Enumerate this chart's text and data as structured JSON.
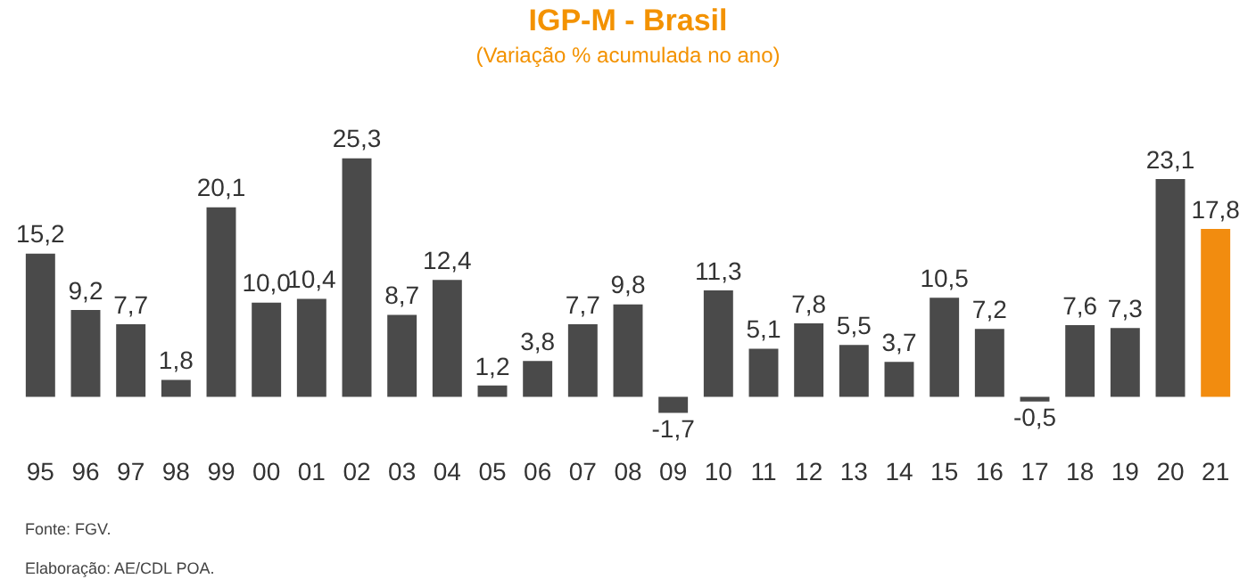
{
  "chart_data": {
    "type": "bar",
    "title": "IGP-M - Brasil",
    "subtitle": "(Variação % acumulada no ano)",
    "categories": [
      "95",
      "96",
      "97",
      "98",
      "99",
      "00",
      "01",
      "02",
      "03",
      "04",
      "05",
      "06",
      "07",
      "08",
      "09",
      "10",
      "11",
      "12",
      "13",
      "14",
      "15",
      "16",
      "17",
      "18",
      "19",
      "20",
      "21"
    ],
    "values": [
      15.2,
      9.2,
      7.7,
      1.8,
      20.1,
      10.0,
      10.4,
      25.3,
      8.7,
      12.4,
      1.2,
      3.8,
      7.7,
      9.8,
      -1.7,
      11.3,
      5.1,
      7.8,
      5.5,
      3.7,
      10.5,
      7.2,
      -0.5,
      7.6,
      7.3,
      23.1,
      17.8
    ],
    "colors": [
      "#4a4a4a",
      "#4a4a4a",
      "#4a4a4a",
      "#4a4a4a",
      "#4a4a4a",
      "#4a4a4a",
      "#4a4a4a",
      "#4a4a4a",
      "#4a4a4a",
      "#4a4a4a",
      "#4a4a4a",
      "#4a4a4a",
      "#4a4a4a",
      "#4a4a4a",
      "#4a4a4a",
      "#4a4a4a",
      "#4a4a4a",
      "#4a4a4a",
      "#4a4a4a",
      "#4a4a4a",
      "#4a4a4a",
      "#4a4a4a",
      "#4a4a4a",
      "#4a4a4a",
      "#4a4a4a",
      "#4a4a4a",
      "#f28c0f"
    ],
    "value_labels": [
      "15,2",
      "9,2",
      "7,7",
      "1,8",
      "20,1",
      "10,0",
      "10,4",
      "25,3",
      "8,7",
      "12,4",
      "1,2",
      "3,8",
      "7,7",
      "9,8",
      "-1,7",
      "11,3",
      "5,1",
      "7,8",
      "5,5",
      "3,7",
      "10,5",
      "7,2",
      "-0,5",
      "7,6",
      "7,3",
      "23,1",
      "17,8"
    ],
    "tick_labels": "x",
    "grid": false,
    "legend": false,
    "annotations": [
      "Fonte: FGV.",
      "Elaboração: AE/CDL POA."
    ]
  }
}
